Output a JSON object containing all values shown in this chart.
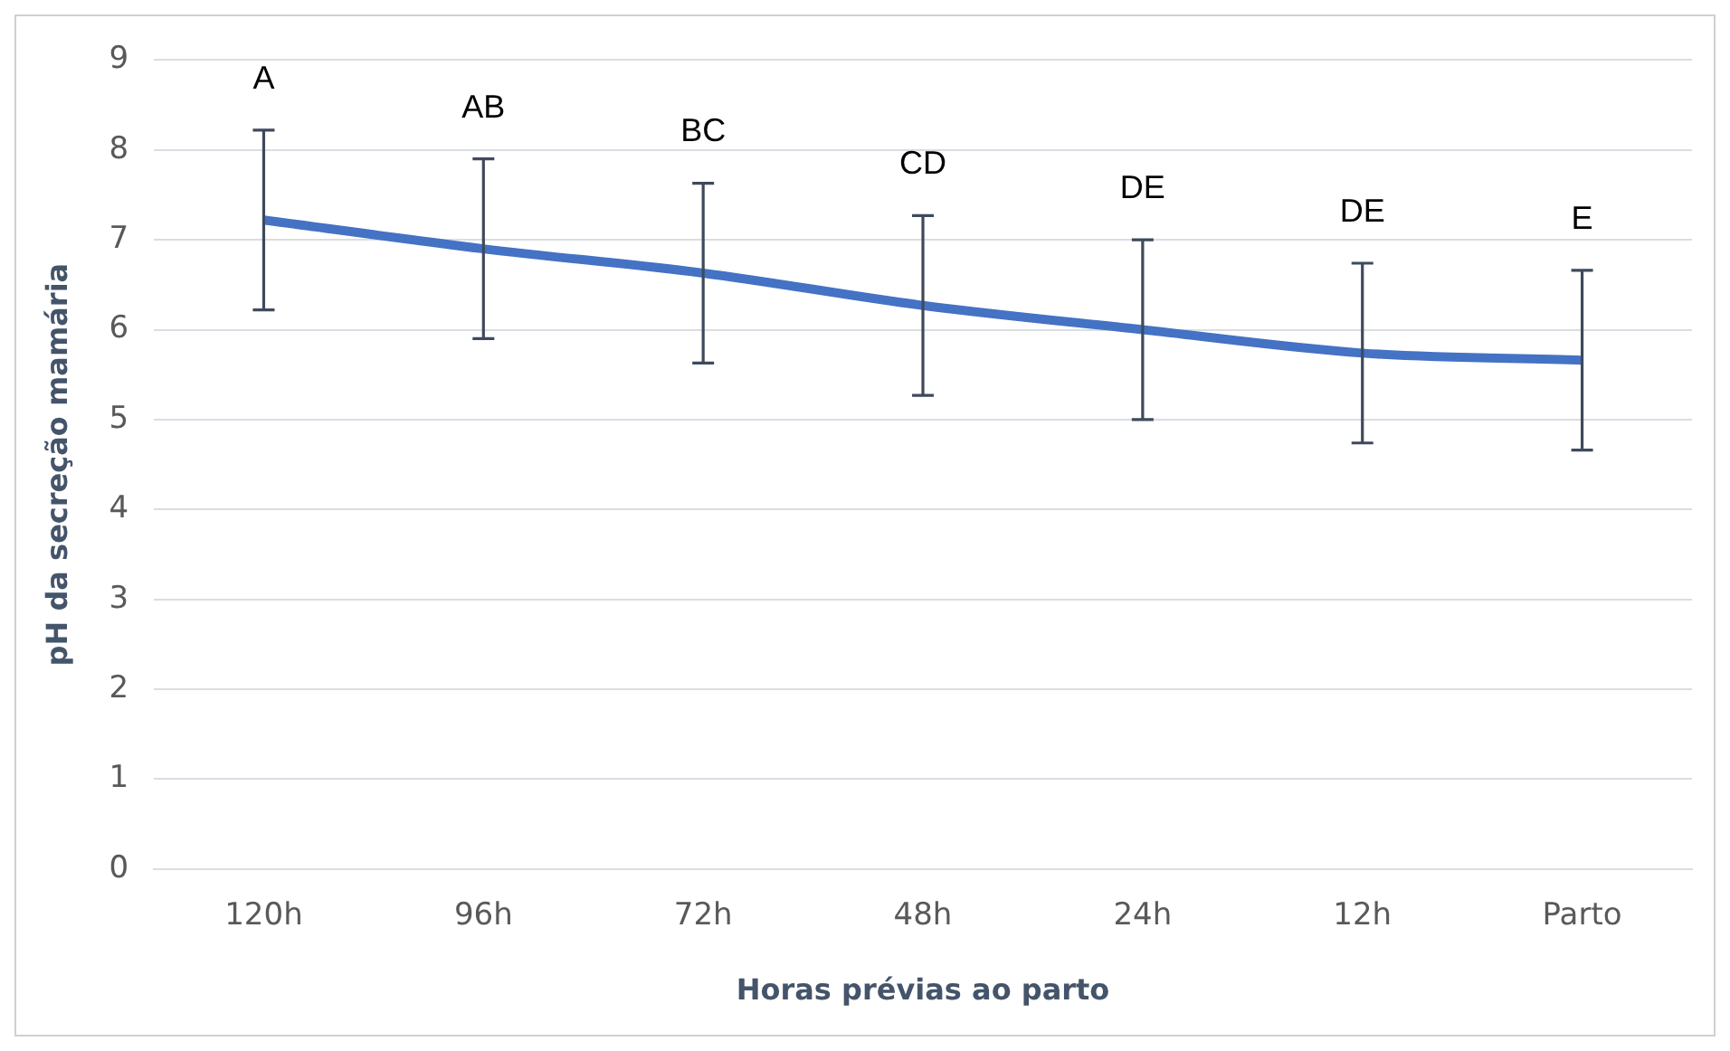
{
  "chart_data": {
    "type": "line",
    "xlabel": "Horas prévias ao parto",
    "ylabel": "pH da secreção mamária",
    "categories": [
      "120h",
      "96h",
      "72h",
      "48h",
      "24h",
      "12h",
      "Parto"
    ],
    "series": [
      {
        "color": "#4472c4",
        "values": [
          7.22,
          6.9,
          6.63,
          6.27,
          6.0,
          5.74,
          5.66
        ],
        "errors": [
          1,
          1,
          1,
          1,
          1,
          1,
          1
        ]
      }
    ],
    "ylim": [
      0,
      9
    ],
    "yticks": [
      0,
      1,
      2,
      3,
      4,
      5,
      6,
      7,
      8,
      9
    ],
    "grid": "y",
    "marker": "none",
    "legend": false,
    "annotations": [
      "A",
      "AB",
      "BC",
      "CD",
      "DE",
      "DE",
      "E"
    ]
  }
}
